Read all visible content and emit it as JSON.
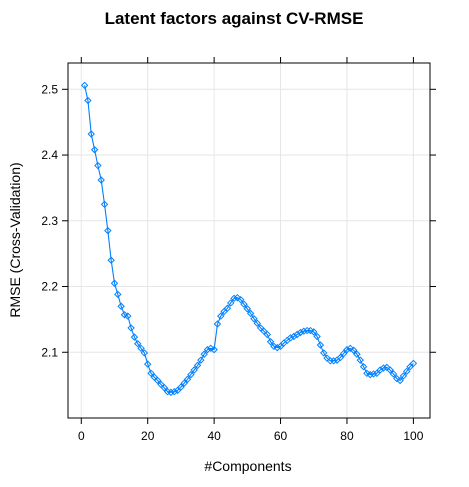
{
  "chart_data": {
    "type": "line",
    "title": "Latent factors against CV-RMSE",
    "xlabel": "#Components",
    "ylabel": "RMSE (Cross-Validation)",
    "xlim": [
      -4,
      105
    ],
    "ylim": [
      2.0,
      2.54
    ],
    "x_ticks": [
      0,
      20,
      40,
      60,
      80,
      100
    ],
    "y_ticks": [
      2.1,
      2.2,
      2.3,
      2.4,
      2.5
    ],
    "x_tick_labels": [
      "0",
      "20",
      "40",
      "60",
      "80",
      "100"
    ],
    "y_tick_labels": [
      "2.1",
      "2.2",
      "2.3",
      "2.4",
      "2.5"
    ],
    "grid": true,
    "marker": "open-diamond",
    "colors": {
      "series": "#0080ff",
      "grid": "#e6e6e6",
      "frame": "#000000"
    },
    "series": [
      {
        "x": [
          1,
          2,
          3,
          4,
          5,
          6,
          7,
          8,
          9,
          10,
          11,
          12,
          13,
          14,
          15,
          16,
          17,
          18,
          19,
          20,
          21,
          22,
          23,
          24,
          25,
          26,
          27,
          28,
          29,
          30,
          31,
          32,
          33,
          34,
          35,
          36,
          37,
          38,
          39,
          40,
          41,
          42,
          43,
          44,
          45,
          46,
          47,
          48,
          49,
          50,
          51,
          52,
          53,
          54,
          55,
          56,
          57,
          58,
          59,
          60,
          61,
          62,
          63,
          64,
          65,
          66,
          67,
          68,
          69,
          70,
          71,
          72,
          73,
          74,
          75,
          76,
          77,
          78,
          79,
          80,
          81,
          82,
          83,
          84,
          85,
          86,
          87,
          88,
          89,
          90,
          91,
          92,
          93,
          94,
          95,
          96,
          97,
          98,
          99,
          100
        ],
        "values": [
          2.506,
          2.483,
          2.432,
          2.408,
          2.384,
          2.362,
          2.325,
          2.285,
          2.24,
          2.205,
          2.188,
          2.17,
          2.157,
          2.155,
          2.137,
          2.123,
          2.113,
          2.106,
          2.099,
          2.082,
          2.068,
          2.062,
          2.057,
          2.051,
          2.046,
          2.04,
          2.039,
          2.04,
          2.042,
          2.047,
          2.053,
          2.059,
          2.066,
          2.073,
          2.08,
          2.088,
          2.097,
          2.104,
          2.106,
          2.104,
          2.143,
          2.155,
          2.162,
          2.167,
          2.175,
          2.182,
          2.183,
          2.18,
          2.173,
          2.166,
          2.159,
          2.151,
          2.144,
          2.137,
          2.132,
          2.127,
          2.116,
          2.109,
          2.107,
          2.109,
          2.114,
          2.118,
          2.122,
          2.124,
          2.127,
          2.13,
          2.132,
          2.133,
          2.133,
          2.131,
          2.124,
          2.111,
          2.099,
          2.091,
          2.087,
          2.087,
          2.088,
          2.092,
          2.098,
          2.104,
          2.106,
          2.103,
          2.097,
          2.088,
          2.078,
          2.068,
          2.066,
          2.067,
          2.068,
          2.073,
          2.076,
          2.077,
          2.073,
          2.067,
          2.06,
          2.057,
          2.064,
          2.071,
          2.078,
          2.083
        ]
      }
    ]
  }
}
